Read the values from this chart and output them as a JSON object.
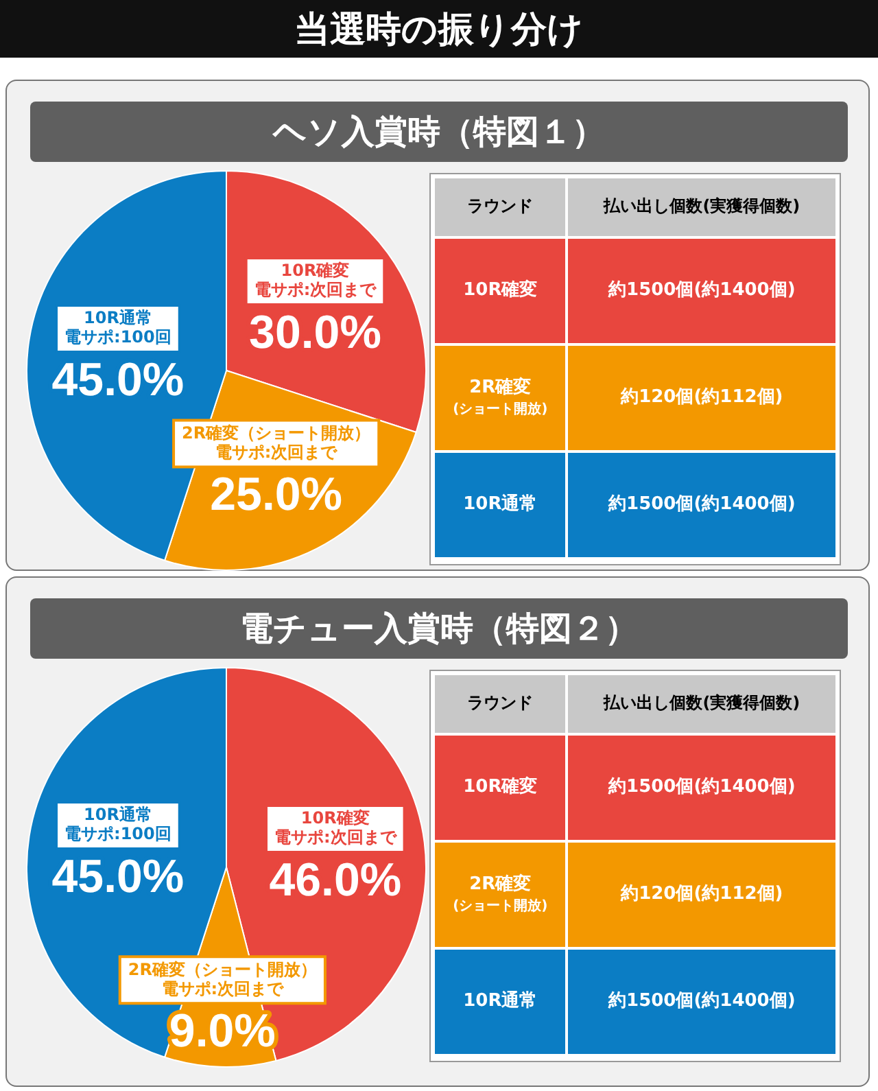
{
  "chart_data": [
    {
      "type": "other",
      "title": "当選時の振り分け"
    },
    {
      "type": "pie",
      "title": "ヘソ入賞時（特図１）",
      "categories": [
        "10R確変",
        "2R確変（ショート開放）",
        "10R通常"
      ],
      "annotations": [
        "電サポ:次回まで",
        "電サポ:次回まで",
        "電サポ:100回"
      ],
      "values": [
        30.0,
        25.0,
        45.0
      ],
      "colors": [
        "#e8463e",
        "#f39800",
        "#0b7dc4"
      ],
      "value_labels": [
        "30.0%",
        "25.0%",
        "45.0%"
      ],
      "legend": false
    },
    {
      "type": "other",
      "annotations": [
        "ラウンド",
        "払い出し個数(実獲得個数)",
        "10R確変",
        "約1500個(約1400個)",
        "2R確変(ショート開放)",
        "約120個(約112個)",
        "10R通常",
        "約1500個(約1400個)"
      ],
      "colors": [
        "#c8c8c8",
        "#e8463e",
        "#f39800",
        "#0b7dc4"
      ]
    },
    {
      "type": "pie",
      "title": "電チュー入賞時（特図２）",
      "categories": [
        "10R確変",
        "2R確変（ショート開放）",
        "10R通常"
      ],
      "annotations": [
        "電サポ:次回まで",
        "電サポ:次回まで",
        "電サポ:100回"
      ],
      "values": [
        46.0,
        9.0,
        45.0
      ],
      "colors": [
        "#e8463e",
        "#f39800",
        "#0b7dc4"
      ],
      "value_labels": [
        "46.0%",
        "9.0%",
        "45.0%"
      ],
      "legend": false
    },
    {
      "type": "other",
      "annotations": [
        "ラウンド",
        "払い出し個数(実獲得個数)",
        "10R確変",
        "約1500個(約1400個)",
        "2R確変(ショート開放)",
        "約120個(約112個)",
        "10R通常",
        "約1500個(約1400個)"
      ],
      "colors": [
        "#c8c8c8",
        "#e8463e",
        "#f39800",
        "#0b7dc4"
      ]
    }
  ]
}
